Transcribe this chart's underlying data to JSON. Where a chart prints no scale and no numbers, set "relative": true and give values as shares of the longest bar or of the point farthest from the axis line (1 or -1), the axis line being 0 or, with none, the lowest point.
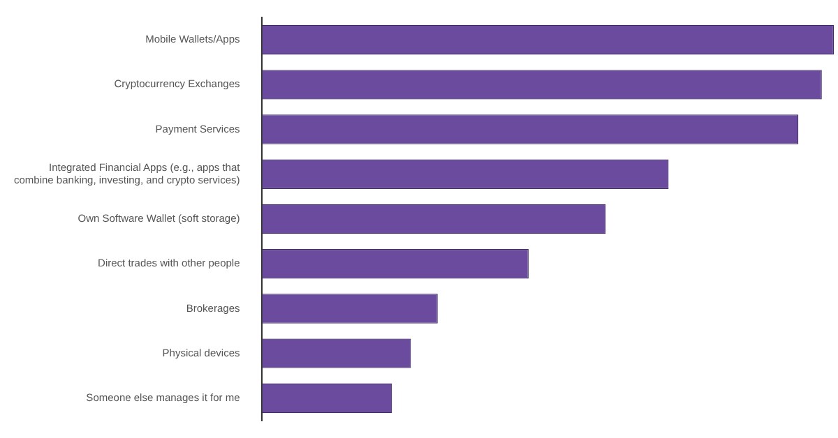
{
  "chart_data": {
    "type": "bar",
    "orientation": "horizontal",
    "relative": true,
    "color": "#6a4b9d",
    "categories": [
      "Mobile Wallets/Apps",
      "Cryptocurrency Exchanges",
      "Payment Services",
      "Integrated Financial Apps (e.g., apps that combine banking, investing, and crypto services)",
      "Own Software Wallet (soft storage)",
      "Direct trades with other people",
      "Brokerages",
      "Physical devices",
      "Someone else manages it for me"
    ],
    "values": [
      1,
      0.979,
      0.938,
      0.711,
      0.601,
      0.466,
      0.307,
      0.26,
      0.227
    ],
    "legend": false
  }
}
